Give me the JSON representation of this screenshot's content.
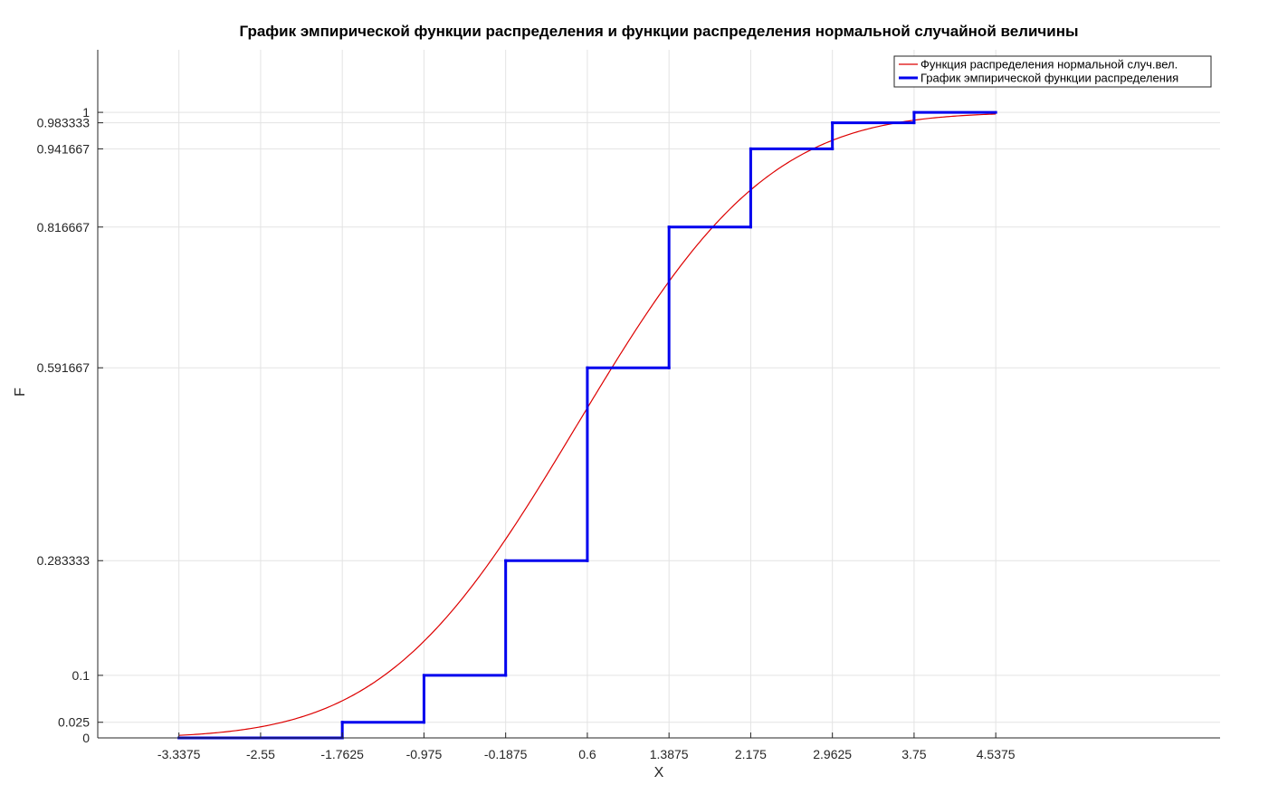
{
  "chart_data": {
    "type": "line",
    "title": "График эмпирической функции распределения и функции распределения нормальной случайной величины",
    "xlabel": "X",
    "ylabel": "F",
    "xlim": [
      -4.12,
      6.7
    ],
    "ylim": [
      0,
      1.1
    ],
    "grid": true,
    "legend_position": "top-right",
    "xticks": [
      -3.3375,
      -2.55,
      -1.7625,
      -0.975,
      -0.1875,
      0.6,
      1.3875,
      2.175,
      2.9625,
      3.75,
      4.5375
    ],
    "xtick_labels": [
      "-3.3375",
      "-2.55",
      "-1.7625",
      "-0.975",
      "-0.1875",
      "0.6",
      "1.3875",
      "2.175",
      "2.9625",
      "3.75",
      "4.5375"
    ],
    "yticks": [
      0,
      0.025,
      0.1,
      0.283333,
      0.591667,
      0.816667,
      0.941667,
      0.983333,
      1
    ],
    "ytick_labels": [
      "0",
      "0.025",
      "0.1",
      "0.283333",
      "0.591667",
      "0.816667",
      "0.941667",
      "0.983333",
      "1"
    ],
    "series": [
      {
        "name": "Функция распределения нормальной случ.вел.",
        "kind": "normal-cdf",
        "color": "#dd0000",
        "mean": 0.5,
        "std": 1.45,
        "x_range": [
          -3.3375,
          4.5375
        ]
      },
      {
        "name": "График эмпирической функции распределения",
        "kind": "step",
        "color": "#0000ee",
        "x": [
          -3.3375,
          -1.7625,
          -0.975,
          -0.1875,
          0.6,
          1.3875,
          2.175,
          2.9625,
          3.75,
          4.5375
        ],
        "y": [
          0,
          0.025,
          0.1,
          0.283333,
          0.591667,
          0.816667,
          0.941667,
          0.983333,
          1,
          1
        ]
      }
    ]
  }
}
